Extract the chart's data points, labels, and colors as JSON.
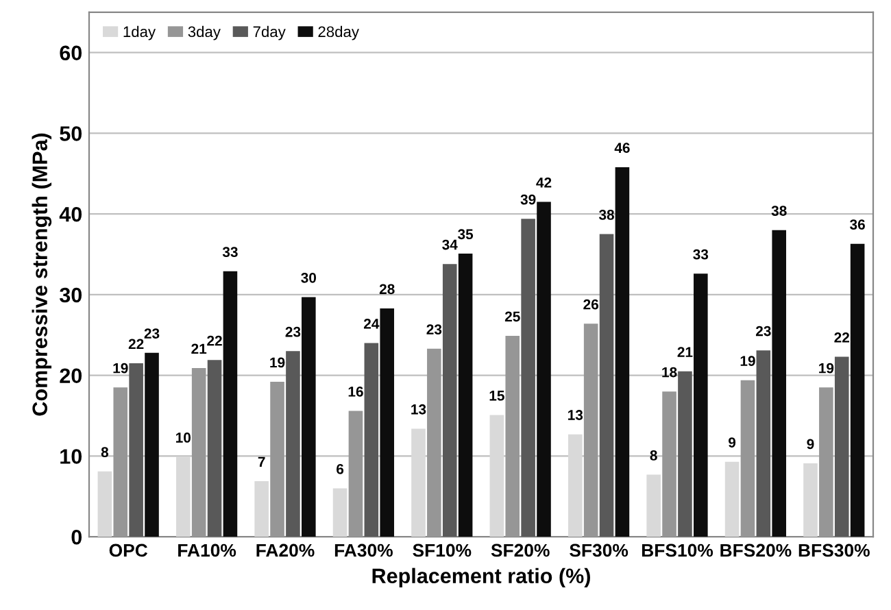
{
  "chart_data": {
    "type": "bar",
    "xlabel": "Replacement ratio (%)",
    "ylabel": "Compressive strength (MPa)",
    "categories": [
      "OPC",
      "FA10%",
      "FA20%",
      "FA30%",
      "SF10%",
      "SF20%",
      "SF30%",
      "BFS10%",
      "BFS20%",
      "BFS30%"
    ],
    "series": [
      {
        "name": "1day",
        "color": "#d9d9d9",
        "values": [
          8.1,
          9.9,
          6.9,
          6.0,
          13.4,
          15.1,
          12.7,
          7.7,
          9.3,
          9.1
        ],
        "value_labels": [
          "8",
          "10",
          "7",
          "6",
          "13",
          "15",
          "13",
          "8",
          "9",
          "9"
        ]
      },
      {
        "name": "3day",
        "color": "#969696",
        "values": [
          18.5,
          20.9,
          19.2,
          15.6,
          23.3,
          24.9,
          26.4,
          18.0,
          19.4,
          18.5
        ],
        "value_labels": [
          "19",
          "21",
          "19",
          "16",
          "23",
          "25",
          "26",
          "18",
          "19",
          "19"
        ]
      },
      {
        "name": "7day",
        "color": "#595959",
        "values": [
          21.5,
          21.9,
          23.0,
          24.0,
          33.8,
          39.4,
          37.5,
          20.5,
          23.1,
          22.3
        ],
        "value_labels": [
          "22",
          "22",
          "23",
          "24",
          "34",
          "39",
          "38",
          "21",
          "23",
          "22"
        ]
      },
      {
        "name": "28day",
        "color": "#0d0d0d",
        "values": [
          22.8,
          32.9,
          29.7,
          28.3,
          35.1,
          41.5,
          45.8,
          32.6,
          38.0,
          36.3
        ],
        "value_labels": [
          "23",
          "33",
          "30",
          "28",
          "35",
          "42",
          "46",
          "33",
          "38",
          "36"
        ]
      }
    ],
    "ylim": [
      0,
      65
    ],
    "yticks": [
      0,
      10,
      20,
      30,
      40,
      50,
      60
    ],
    "grid": "y",
    "legend": "top left"
  }
}
